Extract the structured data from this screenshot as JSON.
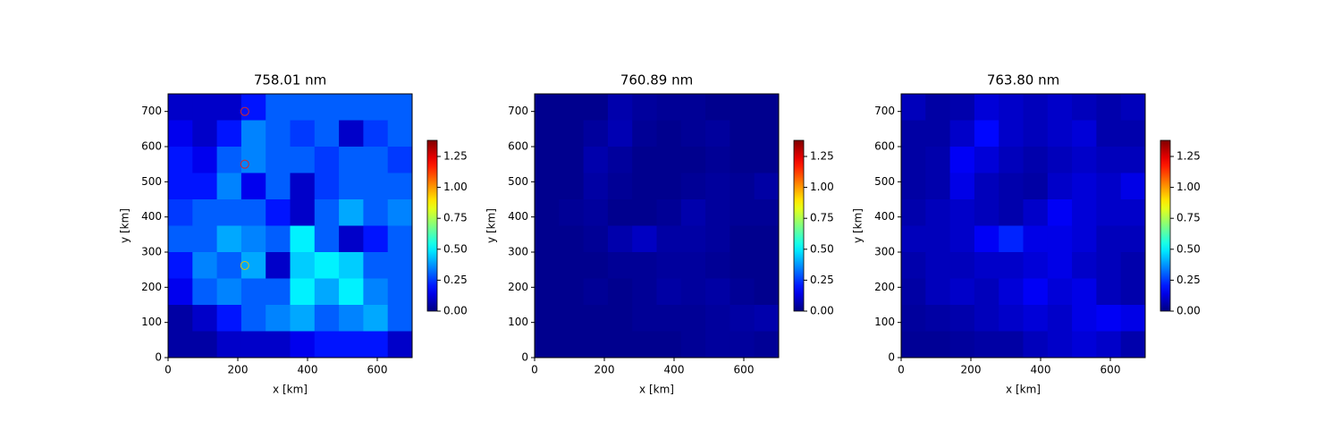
{
  "chart_data": [
    {
      "type": "heatmap",
      "title": "758.01 nm",
      "xlabel": "x [km]",
      "ylabel": "y [km]",
      "xlim": [
        0,
        700
      ],
      "ylim": [
        0,
        750
      ],
      "xticks": [
        0,
        200,
        400,
        600
      ],
      "yticks": [
        0,
        100,
        200,
        300,
        400,
        500,
        600,
        700
      ],
      "colormap": "jet",
      "clim": [
        0,
        1.38
      ],
      "cticks": [
        {
          "value": 0,
          "label": "0.00"
        },
        {
          "value": 0.25,
          "label": "0.25"
        },
        {
          "value": 0.5,
          "label": "0.50"
        },
        {
          "value": 0.75,
          "label": "0.75"
        },
        {
          "value": 1,
          "label": "1.00"
        },
        {
          "value": 1.25,
          "label": "1.25"
        }
      ],
      "values": [
        [
          0.1,
          0.1,
          0.1,
          0.2,
          0.3,
          0.3,
          0.3,
          0.3,
          0.3,
          0.3
        ],
        [
          0.15,
          0.1,
          0.2,
          0.35,
          0.3,
          0.25,
          0.3,
          0.1,
          0.25,
          0.3
        ],
        [
          0.2,
          0.15,
          0.3,
          0.35,
          0.3,
          0.3,
          0.25,
          0.3,
          0.3,
          0.25
        ],
        [
          0.2,
          0.2,
          0.35,
          0.15,
          0.3,
          0.1,
          0.25,
          0.3,
          0.3,
          0.3
        ],
        [
          0.25,
          0.3,
          0.3,
          0.3,
          0.2,
          0.1,
          0.3,
          0.4,
          0.3,
          0.35
        ],
        [
          0.3,
          0.3,
          0.4,
          0.35,
          0.3,
          0.5,
          0.3,
          0.1,
          0.2,
          0.3
        ],
        [
          0.2,
          0.35,
          0.3,
          0.4,
          0.1,
          0.45,
          0.5,
          0.45,
          0.3,
          0.3
        ],
        [
          0.15,
          0.3,
          0.35,
          0.3,
          0.3,
          0.5,
          0.4,
          0.5,
          0.35,
          0.3
        ],
        [
          0.05,
          0.1,
          0.2,
          0.3,
          0.35,
          0.4,
          0.3,
          0.35,
          0.4,
          0.3
        ],
        [
          0.05,
          0.05,
          0.1,
          0.1,
          0.1,
          0.15,
          0.2,
          0.2,
          0.2,
          0.1
        ]
      ],
      "markers": {
        "x": [
          220,
          220,
          220
        ],
        "y": [
          700,
          550,
          262
        ],
        "colors": [
          "#d62728",
          "#d62728",
          "#e0c000"
        ]
      }
    },
    {
      "type": "heatmap",
      "title": "760.89 nm",
      "xlabel": "x [km]",
      "ylabel": "y [km]",
      "xlim": [
        0,
        700
      ],
      "ylim": [
        0,
        750
      ],
      "xticks": [
        0,
        200,
        400,
        600
      ],
      "yticks": [
        0,
        100,
        200,
        300,
        400,
        500,
        600,
        700
      ],
      "colormap": "jet",
      "clim": [
        0,
        1.38
      ],
      "cticks": [
        {
          "value": 0,
          "label": "0.00"
        },
        {
          "value": 0.25,
          "label": "0.25"
        },
        {
          "value": 0.5,
          "label": "0.50"
        },
        {
          "value": 0.75,
          "label": "0.75"
        },
        {
          "value": 1,
          "label": "1.00"
        },
        {
          "value": 1.25,
          "label": "1.25"
        }
      ],
      "values": [
        [
          0.02,
          0.02,
          0.02,
          0.06,
          0.04,
          0.03,
          0.03,
          0.02,
          0.02,
          0.02
        ],
        [
          0.02,
          0.02,
          0.04,
          0.07,
          0.03,
          0.02,
          0.03,
          0.04,
          0.02,
          0.02
        ],
        [
          0.02,
          0.02,
          0.06,
          0.04,
          0.02,
          0.02,
          0.02,
          0.03,
          0.02,
          0.02
        ],
        [
          0.02,
          0.02,
          0.05,
          0.03,
          0.02,
          0.02,
          0.03,
          0.04,
          0.03,
          0.05
        ],
        [
          0.02,
          0.03,
          0.04,
          0.02,
          0.02,
          0.03,
          0.06,
          0.04,
          0.03,
          0.03
        ],
        [
          0.02,
          0.02,
          0.03,
          0.06,
          0.09,
          0.05,
          0.05,
          0.04,
          0.02,
          0.02
        ],
        [
          0.02,
          0.02,
          0.02,
          0.03,
          0.03,
          0.04,
          0.04,
          0.03,
          0.02,
          0.02
        ],
        [
          0.02,
          0.02,
          0.03,
          0.02,
          0.03,
          0.05,
          0.04,
          0.05,
          0.03,
          0.02
        ],
        [
          0.02,
          0.02,
          0.02,
          0.02,
          0.03,
          0.03,
          0.03,
          0.04,
          0.05,
          0.06
        ],
        [
          0.02,
          0.02,
          0.02,
          0.02,
          0.02,
          0.02,
          0.03,
          0.04,
          0.04,
          0.03
        ]
      ]
    },
    {
      "type": "heatmap",
      "title": "763.80 nm",
      "xlabel": "x [km]",
      "ylabel": "y [km]",
      "xlim": [
        0,
        700
      ],
      "ylim": [
        0,
        750
      ],
      "xticks": [
        0,
        200,
        400,
        600
      ],
      "yticks": [
        0,
        100,
        200,
        300,
        400,
        500,
        600,
        700
      ],
      "colormap": "jet",
      "clim": [
        0,
        1.38
      ],
      "cticks": [
        {
          "value": 0,
          "label": "0.00"
        },
        {
          "value": 0.25,
          "label": "0.25"
        },
        {
          "value": 0.5,
          "label": "0.50"
        },
        {
          "value": 0.75,
          "label": "0.75"
        },
        {
          "value": 1,
          "label": "1.00"
        },
        {
          "value": 1.25,
          "label": "1.25"
        }
      ],
      "values": [
        [
          0.08,
          0.05,
          0.06,
          0.12,
          0.1,
          0.08,
          0.1,
          0.08,
          0.06,
          0.08
        ],
        [
          0.05,
          0.05,
          0.1,
          0.18,
          0.1,
          0.08,
          0.1,
          0.12,
          0.06,
          0.06
        ],
        [
          0.05,
          0.06,
          0.16,
          0.12,
          0.08,
          0.06,
          0.08,
          0.1,
          0.08,
          0.08
        ],
        [
          0.05,
          0.06,
          0.14,
          0.08,
          0.06,
          0.05,
          0.1,
          0.12,
          0.1,
          0.14
        ],
        [
          0.06,
          0.08,
          0.1,
          0.08,
          0.06,
          0.1,
          0.16,
          0.12,
          0.1,
          0.1
        ],
        [
          0.08,
          0.08,
          0.1,
          0.16,
          0.22,
          0.14,
          0.14,
          0.12,
          0.08,
          0.08
        ],
        [
          0.06,
          0.08,
          0.08,
          0.1,
          0.1,
          0.12,
          0.14,
          0.1,
          0.08,
          0.06
        ],
        [
          0.05,
          0.08,
          0.1,
          0.08,
          0.12,
          0.16,
          0.12,
          0.14,
          0.08,
          0.06
        ],
        [
          0.04,
          0.05,
          0.06,
          0.08,
          0.1,
          0.12,
          0.1,
          0.14,
          0.16,
          0.14
        ],
        [
          0.03,
          0.03,
          0.04,
          0.05,
          0.05,
          0.08,
          0.1,
          0.12,
          0.1,
          0.06
        ]
      ]
    }
  ]
}
